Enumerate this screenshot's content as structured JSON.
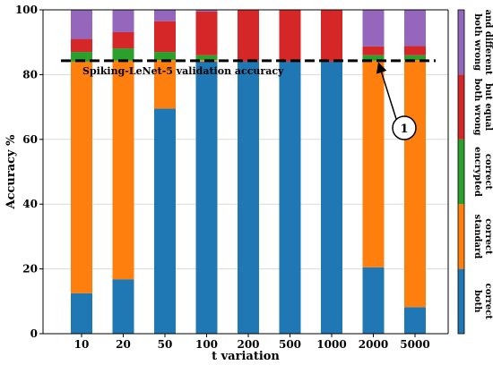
{
  "chart_data": {
    "type": "bar",
    "stacked": true,
    "xlabel": "t variation",
    "ylabel": "Accuracy %",
    "ylim": [
      0,
      100
    ],
    "yticks": [
      0,
      20,
      40,
      60,
      80,
      100
    ],
    "categories": [
      "10",
      "20",
      "50",
      "100",
      "200",
      "500",
      "1000",
      "2000",
      "5000"
    ],
    "grid": "horizontal",
    "series": [
      {
        "name": "both correct",
        "color": "#1f77b4",
        "values": [
          12.5,
          16.8,
          69.5,
          84.0,
          84.0,
          84.0,
          84.0,
          20.5,
          8.2
        ]
      },
      {
        "name": "standard correct",
        "color": "#ff7f0e",
        "values": [
          71.5,
          67.5,
          15.0,
          0.5,
          0.0,
          0.0,
          0.0,
          63.8,
          76.3
        ]
      },
      {
        "name": "encrypted correct",
        "color": "#2ca02c",
        "values": [
          3.0,
          3.8,
          2.5,
          1.5,
          0.0,
          0.0,
          0.0,
          1.7,
          1.5
        ]
      },
      {
        "name": "both wrong but equal",
        "color": "#d62728",
        "values": [
          4.0,
          5.0,
          9.5,
          13.5,
          16.0,
          16.0,
          16.0,
          2.7,
          2.8
        ]
      },
      {
        "name": "both wrong and different",
        "color": "#9467bd",
        "values": [
          9.0,
          6.9,
          3.5,
          0.5,
          0.0,
          0.0,
          0.0,
          11.3,
          11.2
        ]
      }
    ],
    "reference_line": {
      "label": "Spiking-LeNet-5 validation accuracy",
      "value": 84.3
    },
    "annotation": {
      "label": "1",
      "points_to_category": "2000",
      "points_to_value": 84.3
    },
    "legend": {
      "placement": "right colorbar",
      "entries": [
        {
          "line1": "both",
          "line2": "correct",
          "color": "#1f77b4"
        },
        {
          "line1": "standard",
          "line2": "correct",
          "color": "#ff7f0e"
        },
        {
          "line1": "encrypted",
          "line2": "correct",
          "color": "#2ca02c"
        },
        {
          "line1": "both wrong",
          "line2": "but equal",
          "color": "#d62728"
        },
        {
          "line1": "both wrong",
          "line2": "and different",
          "color": "#9467bd"
        }
      ]
    }
  }
}
